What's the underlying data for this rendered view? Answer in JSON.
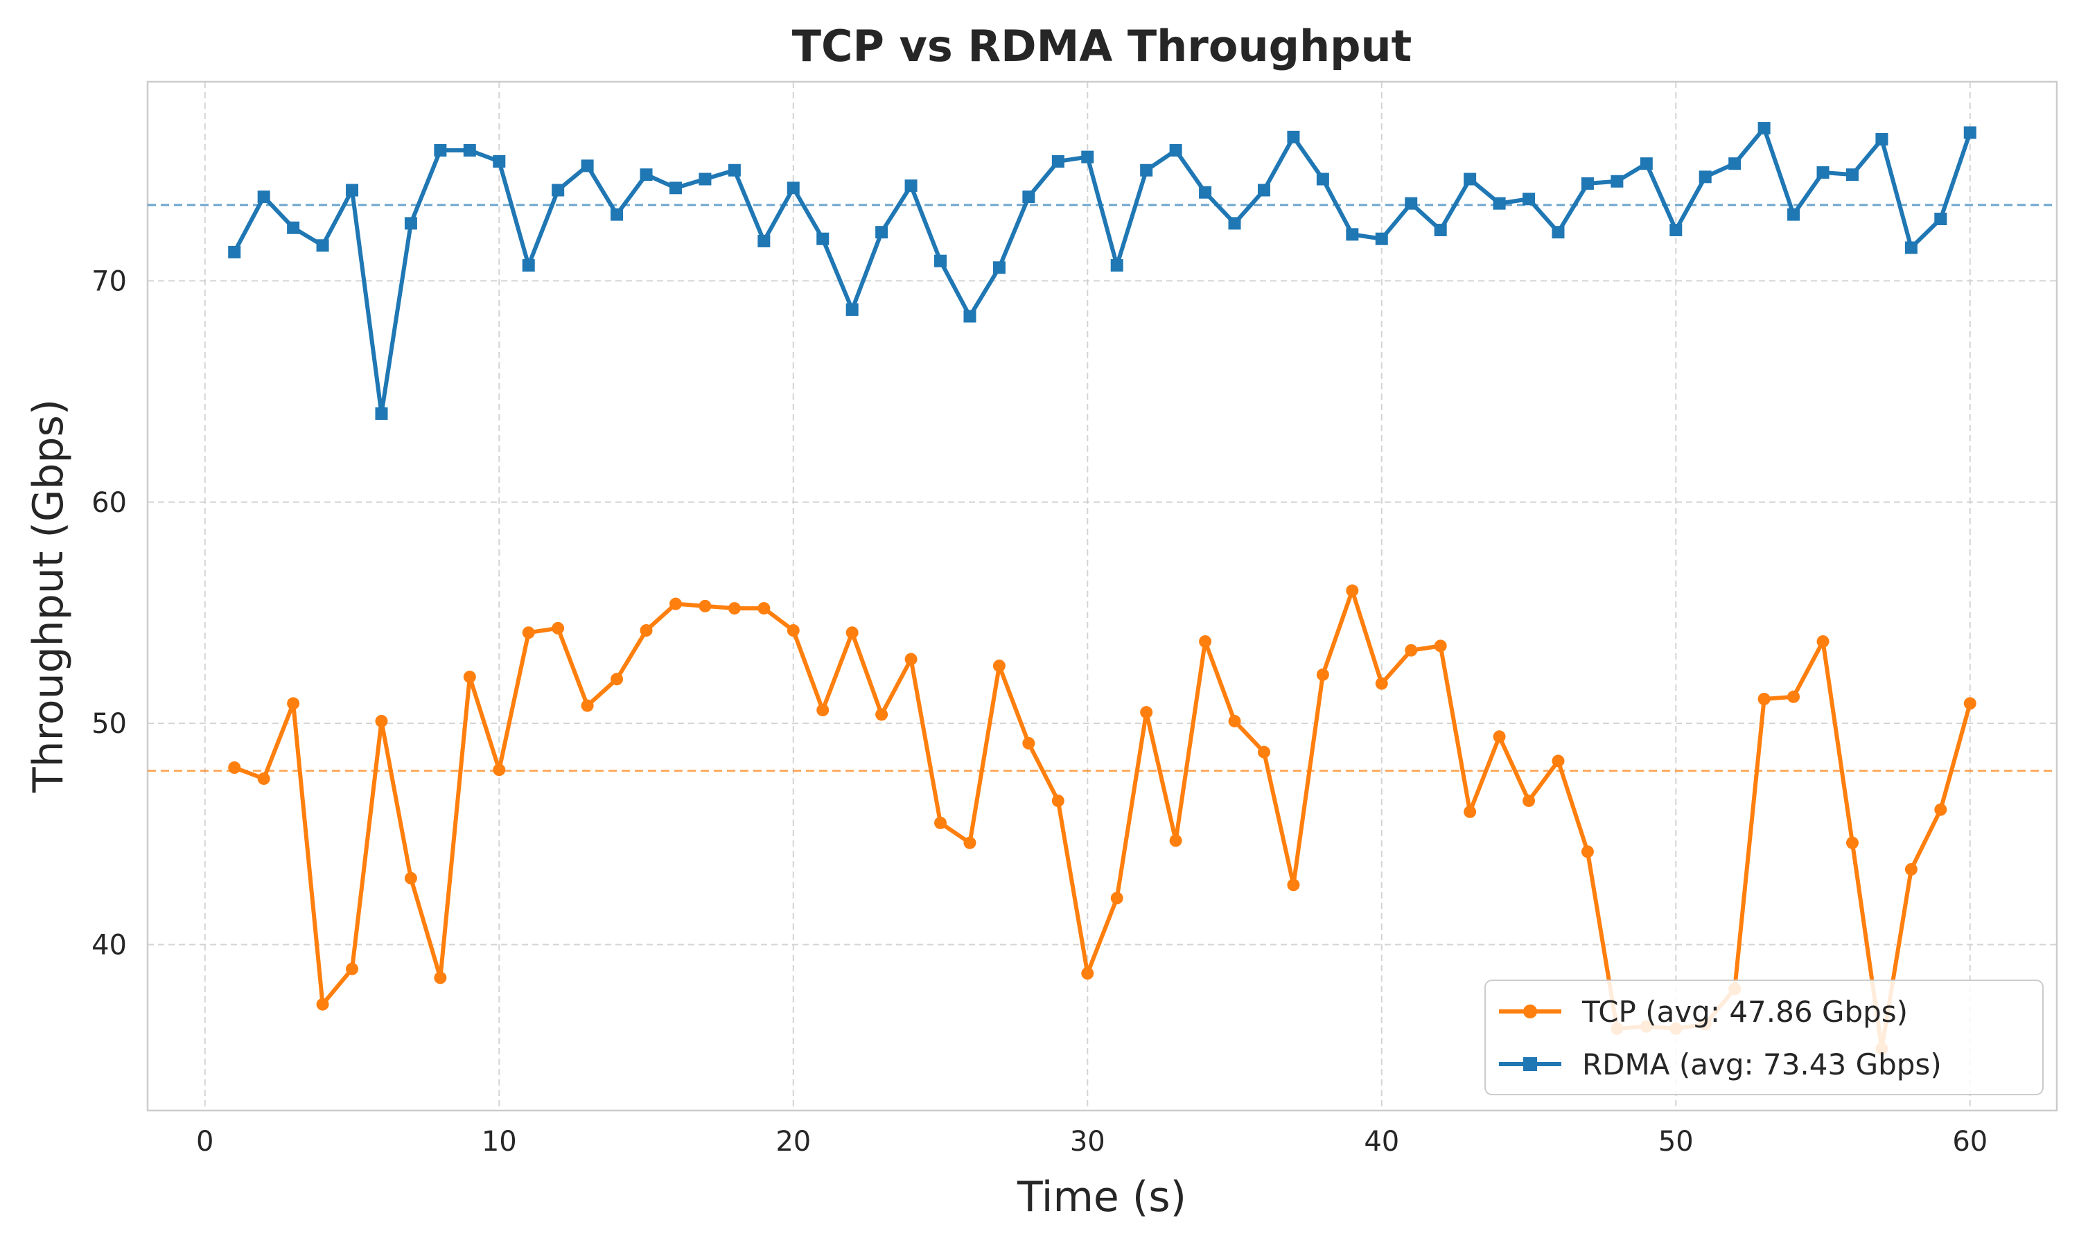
{
  "chart_data": {
    "type": "line",
    "title": "TCP vs RDMA Throughput",
    "xlabel": "Time (s)",
    "ylabel": "Throughput (Gbps)",
    "xlim": [
      -1.95,
      62.95
    ],
    "ylim": [
      32.5,
      79.0
    ],
    "xticks": [
      0,
      10,
      20,
      30,
      40,
      50,
      60
    ],
    "yticks": [
      40,
      50,
      60,
      70
    ],
    "grid": true,
    "legend_position": "bottom-right",
    "x": [
      1,
      2,
      3,
      4,
      5,
      6,
      7,
      8,
      9,
      10,
      11,
      12,
      13,
      14,
      15,
      16,
      17,
      18,
      19,
      20,
      21,
      22,
      23,
      24,
      25,
      26,
      27,
      28,
      29,
      30,
      31,
      32,
      33,
      34,
      35,
      36,
      37,
      38,
      39,
      40,
      41,
      42,
      43,
      44,
      45,
      46,
      47,
      48,
      49,
      50,
      51,
      52,
      53,
      54,
      55,
      56,
      57,
      58,
      59,
      60
    ],
    "series": [
      {
        "name": "TCP (avg: 47.86 Gbps)",
        "color": "#ff7f0e",
        "marker": "circle",
        "mean": 47.86,
        "values": [
          48.0,
          47.5,
          50.9,
          37.3,
          38.9,
          50.1,
          43.0,
          38.5,
          52.1,
          47.9,
          54.1,
          54.3,
          50.8,
          52.0,
          54.2,
          55.4,
          55.3,
          55.2,
          55.2,
          54.2,
          50.6,
          54.1,
          50.4,
          52.9,
          45.5,
          44.6,
          52.6,
          49.1,
          46.5,
          38.7,
          42.1,
          50.5,
          44.7,
          53.7,
          50.1,
          48.7,
          42.7,
          52.2,
          56.0,
          51.8,
          53.3,
          53.5,
          46.0,
          49.4,
          46.5,
          48.3,
          44.2,
          36.2,
          36.3,
          36.2,
          36.4,
          38.0,
          51.1,
          51.2,
          53.7,
          44.6,
          35.3,
          43.4,
          46.1,
          50.9
        ]
      },
      {
        "name": "RDMA (avg: 73.43 Gbps)",
        "color": "#1f77b4",
        "marker": "square",
        "mean": 73.43,
        "values": [
          71.3,
          73.8,
          72.4,
          71.6,
          74.1,
          64.0,
          72.6,
          75.9,
          75.9,
          75.4,
          70.7,
          74.1,
          75.2,
          73.0,
          74.8,
          74.2,
          74.6,
          75.0,
          71.8,
          74.2,
          71.9,
          68.7,
          72.2,
          74.3,
          70.9,
          68.4,
          70.6,
          73.8,
          75.4,
          75.6,
          70.7,
          75.0,
          75.9,
          74.0,
          72.6,
          74.1,
          76.5,
          74.6,
          72.1,
          71.9,
          73.5,
          72.3,
          74.6,
          73.5,
          73.7,
          72.2,
          74.4,
          74.5,
          75.3,
          72.3,
          74.7,
          75.3,
          76.9,
          73.0,
          74.9,
          74.8,
          76.4,
          71.5,
          72.8,
          76.7
        ]
      }
    ]
  }
}
